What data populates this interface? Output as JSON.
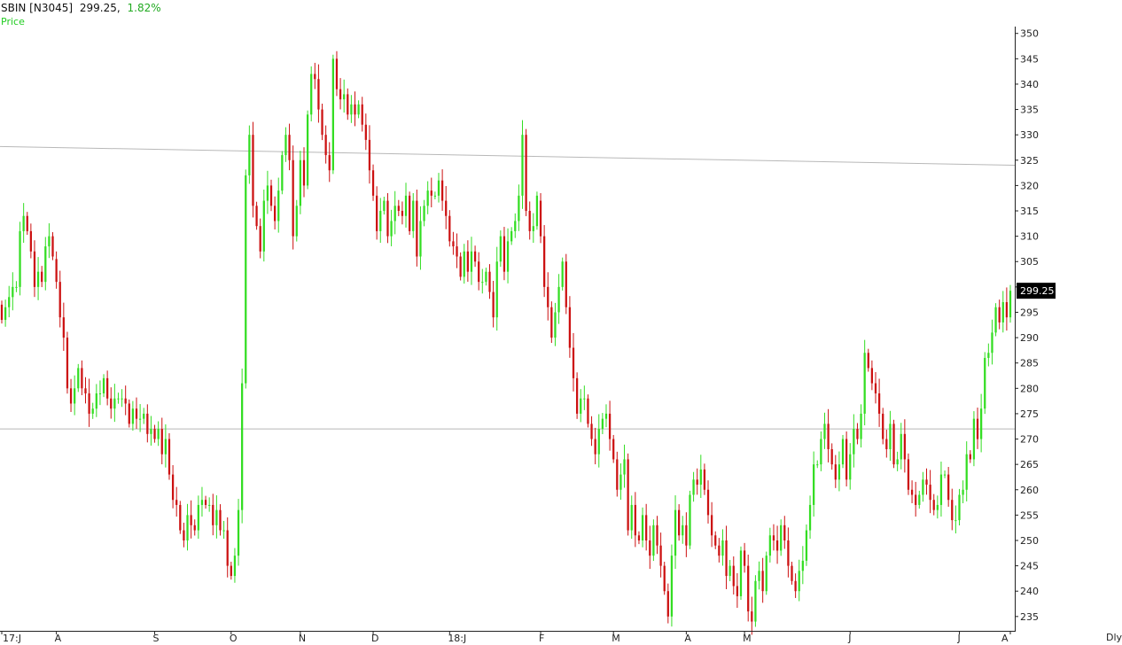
{
  "header": {
    "symbol": "SBIN [N3045]",
    "price": "299.25,",
    "change": "1.82%",
    "series_label": "Price"
  },
  "footer": {
    "periodicity": "Dly"
  },
  "colors": {
    "up": "#33dd22",
    "down": "#cc1111",
    "change_text": "#22aa22",
    "series_label": "#22cc22",
    "line": "#b8b8b8",
    "axis": "#222222",
    "last_bg": "#000000"
  },
  "chart_data": {
    "type": "candlestick",
    "title": "",
    "series_name": "Price",
    "ylim": [
      232,
      351
    ],
    "y_ticks": [
      235,
      240,
      245,
      250,
      255,
      260,
      265,
      270,
      275,
      280,
      285,
      290,
      295,
      300,
      305,
      310,
      315,
      320,
      325,
      330,
      335,
      340,
      345,
      350
    ],
    "x_tick_labels": [
      "17:J",
      "A",
      "S",
      "O",
      "N",
      "D",
      "18:J",
      "F",
      "M",
      "A",
      "M",
      "J",
      "J",
      "A"
    ],
    "last_price": "299.25",
    "grid": false,
    "trendlines": [
      {
        "from": [
          "2017-07",
          327.7
        ],
        "to": [
          "2018-08",
          324.0
        ]
      },
      {
        "from": [
          "2017-07",
          272.0
        ],
        "to": [
          "2018-08",
          272.0
        ]
      }
    ],
    "months": [
      {
        "label": "Jul",
        "start": 296.5,
        "closes": [
          293.5,
          296,
          298,
          300,
          300,
          311,
          314,
          311,
          307,
          300,
          303,
          301,
          308,
          310,
          306
        ]
      },
      {
        "label": "Aug",
        "start": 305.5,
        "closes": [
          301,
          294,
          290,
          280,
          277,
          280,
          284,
          280,
          279,
          275,
          276,
          279,
          279,
          282,
          278,
          276,
          278,
          278,
          278,
          277,
          273,
          276,
          274,
          274,
          275,
          271,
          272
        ]
      },
      {
        "label": "Sep",
        "start": 272,
        "closes": [
          270,
          272,
          267,
          270,
          263,
          258,
          257,
          252,
          250,
          255,
          253,
          252,
          257,
          258,
          257,
          257,
          253,
          256,
          252,
          252,
          245
        ]
      },
      {
        "label": "Oct",
        "start": 245,
        "closes": [
          243,
          247,
          256,
          281,
          322,
          330,
          316,
          312,
          307,
          317,
          320,
          316,
          313,
          319,
          326,
          330,
          325,
          310,
          316
        ]
      },
      {
        "label": "Nov",
        "start": 316,
        "closes": [
          325,
          320,
          334,
          342,
          341,
          335,
          330,
          326,
          323,
          345,
          339,
          337,
          338,
          334,
          336,
          334,
          336,
          332,
          329,
          323
        ]
      },
      {
        "label": "Dec",
        "start": 323,
        "closes": [
          318,
          311,
          315,
          317,
          310,
          313,
          316,
          315,
          314,
          318,
          311,
          317,
          306,
          313,
          316,
          319,
          318,
          318,
          321,
          317,
          314
        ]
      },
      {
        "label": "Jan",
        "start": 314,
        "closes": [
          309,
          308,
          306,
          302,
          307,
          303,
          307,
          305,
          301,
          301,
          303,
          299,
          294,
          305,
          310,
          303,
          309,
          311,
          313,
          318,
          330,
          315,
          311,
          312,
          318
        ]
      },
      {
        "label": "Feb",
        "start": 317,
        "closes": [
          310,
          300,
          296,
          290,
          295,
          300,
          305,
          296,
          288,
          282,
          275,
          278,
          278,
          273,
          270,
          267,
          272,
          274,
          275,
          270
        ]
      },
      {
        "label": "Mar",
        "start": 270,
        "closes": [
          266,
          260,
          263,
          266,
          252,
          257,
          251,
          250,
          255,
          250,
          247,
          253,
          249,
          245,
          240,
          235,
          247,
          256,
          251,
          253
        ]
      },
      {
        "label": "Apr",
        "start": 253,
        "closes": [
          249,
          259,
          262,
          261,
          264,
          260,
          255,
          251,
          249,
          247,
          250,
          243,
          245,
          241,
          239,
          248
        ]
      },
      {
        "label": "May",
        "start": 248,
        "closes": [
          245,
          236,
          234,
          242,
          244,
          240,
          247,
          251,
          250,
          248,
          253,
          250,
          245,
          242,
          240,
          244,
          246,
          252,
          257,
          265,
          265,
          270,
          273,
          268,
          265,
          262,
          265,
          270,
          262
        ]
      },
      {
        "label": "Jun",
        "start": 262,
        "closes": [
          267,
          272,
          270,
          275,
          287,
          284,
          281,
          279,
          275,
          270,
          268,
          273,
          265,
          266,
          271,
          266,
          260,
          259,
          257,
          259,
          262,
          261,
          258,
          256,
          257,
          263,
          263,
          258,
          254,
          254
        ]
      },
      {
        "label": "Jul",
        "start": 254,
        "closes": [
          259,
          260,
          267,
          266,
          274,
          270,
          276,
          286,
          287,
          291,
          296,
          293,
          297,
          294,
          299.25
        ]
      }
    ]
  }
}
